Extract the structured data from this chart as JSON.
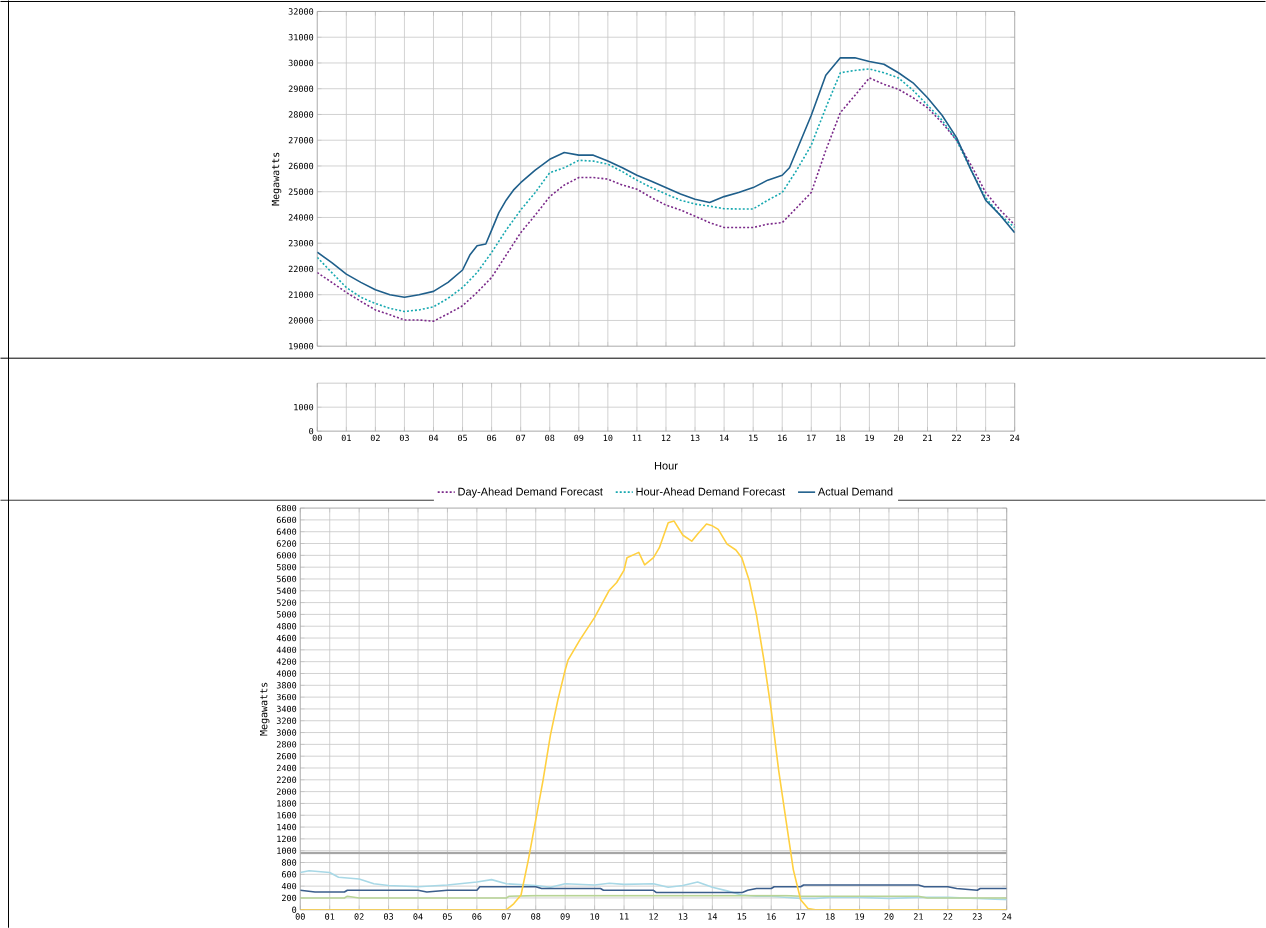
{
  "chart_data": [
    {
      "type": "line",
      "ylabel": "Megawatts",
      "xlim": [
        0,
        24
      ],
      "ylim": [
        19000,
        32000
      ],
      "xticks": [
        {
          "value": 0,
          "label": null
        },
        {
          "value": 1,
          "label": null
        },
        {
          "value": 2,
          "label": null
        },
        {
          "value": 3,
          "label": null
        },
        {
          "value": 4,
          "label": null
        },
        {
          "value": 5,
          "label": null
        },
        {
          "value": 6,
          "label": null
        },
        {
          "value": 7,
          "label": null
        },
        {
          "value": 8,
          "label": null
        },
        {
          "value": 9,
          "label": null
        },
        {
          "value": 10,
          "label": null
        },
        {
          "value": 11,
          "label": null
        },
        {
          "value": 12,
          "label": null
        },
        {
          "value": 13,
          "label": null
        },
        {
          "value": 14,
          "label": null
        },
        {
          "value": 15,
          "label": null
        },
        {
          "value": 16,
          "label": null
        },
        {
          "value": 17,
          "label": null
        },
        {
          "value": 18,
          "label": null
        },
        {
          "value": 19,
          "label": null
        },
        {
          "value": 20,
          "label": null
        },
        {
          "value": 21,
          "label": null
        },
        {
          "value": 22,
          "label": null
        },
        {
          "value": 23,
          "label": null
        },
        {
          "value": 24,
          "label": null
        }
      ],
      "yticks": [
        19000,
        20000,
        21000,
        22000,
        23000,
        24000,
        25000,
        26000,
        27000,
        28000,
        29000,
        30000,
        31000,
        32000
      ],
      "tick_labels": "y",
      "grid": true,
      "legend": "bottom",
      "marker": "none",
      "series": [
        {
          "name": "Day-Ahead Demand Forecast",
          "color": "#7b2a8a",
          "line_style": "dotted",
          "x": [
            0,
            0.5,
            1,
            1.5,
            2,
            2.5,
            3,
            3.5,
            4,
            4.5,
            5,
            5.5,
            6,
            6.5,
            7,
            7.5,
            8,
            8.5,
            9,
            9.5,
            10,
            10.5,
            11,
            11.5,
            12,
            12.5,
            13,
            13.5,
            14,
            14.5,
            15,
            15.5,
            16,
            16.5,
            17,
            17.5,
            18,
            18.5,
            19,
            19.5,
            20,
            20.5,
            21,
            21.5,
            22,
            22.5,
            23,
            23.5,
            24
          ],
          "values": [
            21860,
            21480,
            21090,
            20740,
            20410,
            20220,
            20020,
            20020,
            19970,
            20260,
            20570,
            21090,
            21670,
            22540,
            23410,
            24090,
            24810,
            25260,
            25550,
            25550,
            25490,
            25260,
            25100,
            24770,
            24480,
            24290,
            24050,
            23800,
            23610,
            23610,
            23610,
            23740,
            23800,
            24380,
            24970,
            26610,
            28070,
            28740,
            29420,
            29170,
            28980,
            28650,
            28260,
            27680,
            27000,
            26030,
            24970,
            24290,
            23710
          ]
        },
        {
          "name": "Hour-Ahead Demand Forecast",
          "color": "#17a8b0",
          "line_style": "dotted",
          "x": [
            0,
            0.5,
            1,
            1.5,
            2,
            2.5,
            3,
            3.5,
            4,
            4.5,
            5,
            5.5,
            6,
            6.5,
            7,
            7.5,
            8,
            8.5,
            9,
            9.5,
            10,
            10.5,
            11,
            11.5,
            12,
            12.5,
            13,
            13.5,
            14,
            14.5,
            15,
            15.5,
            16,
            16.5,
            17,
            17.5,
            18,
            18.5,
            19,
            19.5,
            20,
            20.5,
            21,
            21.5,
            22,
            22.5,
            23,
            23.5,
            24
          ],
          "values": [
            22450,
            21860,
            21280,
            20900,
            20660,
            20470,
            20350,
            20410,
            20530,
            20860,
            21280,
            21860,
            22640,
            23510,
            24290,
            24970,
            25740,
            25930,
            26220,
            26190,
            26070,
            25780,
            25450,
            25160,
            24910,
            24670,
            24520,
            24440,
            24340,
            24330,
            24330,
            24670,
            24970,
            25840,
            26810,
            28260,
            29620,
            29710,
            29770,
            29620,
            29420,
            28940,
            28360,
            27780,
            27000,
            25840,
            24770,
            24090,
            23610
          ]
        },
        {
          "name": "Actual Demand",
          "color": "#1f5f8b",
          "line_style": "solid",
          "x": [
            0,
            0.5,
            1,
            1.5,
            2,
            2.5,
            3,
            3.5,
            4,
            4.5,
            5,
            5.25,
            5.5,
            5.8,
            6,
            6.25,
            6.5,
            6.75,
            7,
            7.5,
            8,
            8.5,
            9,
            9.5,
            10,
            10.5,
            11,
            11.5,
            12,
            12.5,
            13,
            13.5,
            14,
            14.5,
            15,
            15.5,
            16,
            16.25,
            16.5,
            17,
            17.5,
            18,
            18.5,
            19,
            19.5,
            20,
            20.5,
            21,
            21.5,
            22,
            22.5,
            23,
            23.5,
            24
          ],
          "values": [
            22650,
            22250,
            21800,
            21480,
            21190,
            21000,
            20900,
            21000,
            21130,
            21480,
            21960,
            22540,
            22900,
            22970,
            23510,
            24190,
            24670,
            25060,
            25350,
            25840,
            26260,
            26520,
            26420,
            26420,
            26190,
            25930,
            25640,
            25410,
            25160,
            24910,
            24710,
            24580,
            24810,
            24970,
            25160,
            25450,
            25640,
            25930,
            26610,
            27970,
            29520,
            30200,
            30200,
            30060,
            29950,
            29620,
            29230,
            28650,
            27970,
            27100,
            25840,
            24670,
            24090,
            23410
          ]
        }
      ]
    },
    {
      "type": "line",
      "xlabel": "Hour",
      "xlim": [
        0,
        24
      ],
      "ylim": [
        0,
        2000
      ],
      "xticks": [
        {
          "value": 0,
          "label": "00"
        },
        {
          "value": 1,
          "label": "01"
        },
        {
          "value": 2,
          "label": "02"
        },
        {
          "value": 3,
          "label": "03"
        },
        {
          "value": 4,
          "label": "04"
        },
        {
          "value": 5,
          "label": "05"
        },
        {
          "value": 6,
          "label": "06"
        },
        {
          "value": 7,
          "label": "07"
        },
        {
          "value": 8,
          "label": "08"
        },
        {
          "value": 9,
          "label": "09"
        },
        {
          "value": 10,
          "label": "10"
        },
        {
          "value": 11,
          "label": "11"
        },
        {
          "value": 12,
          "label": "12"
        },
        {
          "value": 13,
          "label": "13"
        },
        {
          "value": 14,
          "label": "14"
        },
        {
          "value": 15,
          "label": "15"
        },
        {
          "value": 16,
          "label": "16"
        },
        {
          "value": 17,
          "label": "17"
        },
        {
          "value": 18,
          "label": "18"
        },
        {
          "value": 19,
          "label": "19"
        },
        {
          "value": 20,
          "label": "20"
        },
        {
          "value": 21,
          "label": "21"
        },
        {
          "value": 22,
          "label": "22"
        },
        {
          "value": 23,
          "label": "23"
        },
        {
          "value": 24,
          "label": "24"
        }
      ],
      "yticks": [
        0,
        1000
      ],
      "grid": true
    },
    {
      "type": "line",
      "ylabel": "Megawatts",
      "xlim": [
        0,
        24
      ],
      "ylim": [
        0,
        6800
      ],
      "xticks": [
        {
          "value": 0,
          "label": "00"
        },
        {
          "value": 1,
          "label": "01"
        },
        {
          "value": 2,
          "label": "02"
        },
        {
          "value": 3,
          "label": "03"
        },
        {
          "value": 4,
          "label": "04"
        },
        {
          "value": 5,
          "label": "05"
        },
        {
          "value": 6,
          "label": "06"
        },
        {
          "value": 7,
          "label": "07"
        },
        {
          "value": 8,
          "label": "08"
        },
        {
          "value": 9,
          "label": "09"
        },
        {
          "value": 10,
          "label": "10"
        },
        {
          "value": 11,
          "label": "11"
        },
        {
          "value": 12,
          "label": "12"
        },
        {
          "value": 13,
          "label": "13"
        },
        {
          "value": 14,
          "label": "14"
        },
        {
          "value": 15,
          "label": "15"
        },
        {
          "value": 16,
          "label": "16"
        },
        {
          "value": 17,
          "label": "17"
        },
        {
          "value": 18,
          "label": "18"
        },
        {
          "value": 19,
          "label": "19"
        },
        {
          "value": 20,
          "label": "20"
        },
        {
          "value": 21,
          "label": "21"
        },
        {
          "value": 22,
          "label": "22"
        },
        {
          "value": 23,
          "label": "23"
        },
        {
          "value": 24,
          "label": "24"
        }
      ],
      "yticks": [
        0,
        200,
        400,
        600,
        800,
        1000,
        1200,
        1400,
        1600,
        1800,
        2000,
        2200,
        2400,
        2600,
        2800,
        3000,
        3200,
        3400,
        3600,
        3800,
        4000,
        4200,
        4400,
        4600,
        4800,
        5000,
        5200,
        5400,
        5600,
        5800,
        6000,
        6200,
        6400,
        6600,
        6800
      ],
      "grid": true,
      "marker": "none",
      "series": [
        {
          "color": "#a6a6a6",
          "x": [
            0,
            24
          ],
          "values": [
            960,
            960
          ]
        },
        {
          "color": "#a8d8e6",
          "x": [
            0,
            0.3,
            1,
            1.3,
            2,
            2.5,
            3,
            4,
            5,
            6,
            6.5,
            7,
            8,
            8.5,
            9,
            10,
            10.5,
            11,
            12,
            12.5,
            13,
            13.5,
            14,
            14.5,
            15,
            15.5,
            16,
            16.5,
            17,
            17.5,
            18,
            19,
            20,
            21,
            22,
            23,
            24
          ],
          "values": [
            630,
            660,
            630,
            550,
            520,
            440,
            410,
            390,
            420,
            470,
            510,
            440,
            410,
            380,
            440,
            420,
            450,
            430,
            440,
            380,
            410,
            470,
            380,
            320,
            250,
            230,
            230,
            210,
            190,
            190,
            210,
            210,
            190,
            210,
            210,
            190,
            170
          ]
        },
        {
          "color": "#b8d495",
          "x": [
            0,
            1.5,
            1.6,
            2,
            7,
            7.1,
            8,
            16.5,
            17,
            21,
            21.3,
            24
          ],
          "values": [
            200,
            200,
            230,
            200,
            200,
            230,
            240,
            240,
            230,
            230,
            200,
            200
          ]
        },
        {
          "color": "#3b5e8c",
          "x": [
            0,
            0.5,
            1.5,
            1.6,
            4,
            4.3,
            5,
            6,
            6.1,
            8,
            8.2,
            10.2,
            10.3,
            12,
            12.1,
            15,
            15.2,
            15.5,
            16,
            16.1,
            17,
            17.1,
            21,
            21.2,
            22,
            22.3,
            23,
            23.1,
            24
          ],
          "values": [
            330,
            300,
            300,
            330,
            330,
            300,
            330,
            330,
            390,
            390,
            360,
            360,
            330,
            330,
            290,
            290,
            330,
            360,
            360,
            390,
            390,
            420,
            420,
            390,
            390,
            360,
            330,
            360,
            360
          ]
        },
        {
          "color": "#ffd040",
          "x": [
            0,
            7,
            7.25,
            7.5,
            7.75,
            8,
            8.25,
            8.5,
            8.75,
            9,
            9.1,
            9.5,
            10,
            10.5,
            10.75,
            11,
            11.1,
            11.5,
            11.7,
            12,
            12.2,
            12.5,
            12.7,
            13,
            13.3,
            13.5,
            13.8,
            14,
            14.2,
            14.5,
            14.8,
            15,
            15.25,
            15.5,
            15.75,
            16,
            16.25,
            16.5,
            16.75,
            17,
            17.25,
            17.5,
            24
          ],
          "values": [
            0,
            0,
            100,
            250,
            850,
            1520,
            2200,
            2960,
            3550,
            4060,
            4230,
            4570,
            4950,
            5410,
            5540,
            5750,
            5960,
            6050,
            5840,
            5960,
            6130,
            6550,
            6580,
            6340,
            6240,
            6360,
            6530,
            6500,
            6440,
            6190,
            6090,
            5960,
            5580,
            4990,
            4230,
            3380,
            2370,
            1520,
            680,
            170,
            20,
            0,
            0
          ]
        }
      ]
    }
  ]
}
